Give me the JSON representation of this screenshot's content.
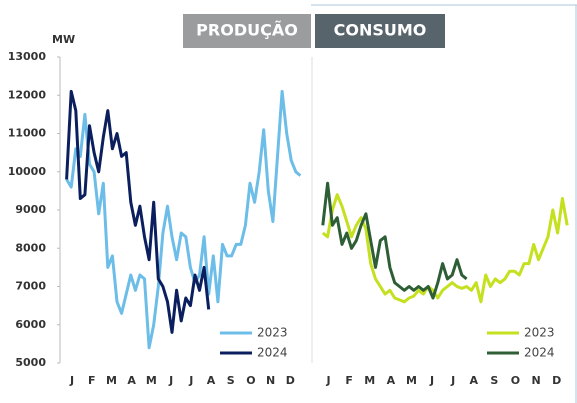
{
  "chart_data": {
    "type": "line",
    "y_label": "MW",
    "ylim": [
      5000,
      13000
    ],
    "yticks": [
      5000,
      6000,
      7000,
      8000,
      9000,
      10000,
      11000,
      12000,
      13000
    ],
    "xlim": [
      0,
      53
    ],
    "x": [
      1,
      2,
      3,
      4,
      5,
      6,
      7,
      8,
      9,
      10,
      11,
      12,
      13,
      14,
      15,
      16,
      17,
      18,
      19,
      20,
      21,
      22,
      23,
      24,
      25,
      26,
      27,
      28,
      29,
      30,
      31,
      32,
      33,
      34,
      35,
      36,
      37,
      38,
      39,
      40,
      41,
      42,
      43,
      44,
      45,
      46,
      47,
      48,
      49,
      50,
      51,
      52
    ],
    "xticks": [
      {
        "value": 2.2,
        "label": "J"
      },
      {
        "value": 6.5,
        "label": "F"
      },
      {
        "value": 10.8,
        "label": "M"
      },
      {
        "value": 15.2,
        "label": "A"
      },
      {
        "value": 19.5,
        "label": "M"
      },
      {
        "value": 23.8,
        "label": "J"
      },
      {
        "value": 28.2,
        "label": "J"
      },
      {
        "value": 32.5,
        "label": "A"
      },
      {
        "value": 36.8,
        "label": "S"
      },
      {
        "value": 41.2,
        "label": "O"
      },
      {
        "value": 45.5,
        "label": "N"
      },
      {
        "value": 49.8,
        "label": "D"
      }
    ],
    "legend": "lower right",
    "panels": [
      {
        "title": "PRODUÇÃO",
        "series": [
          {
            "name": "2023",
            "color": "#6cbde8",
            "values": [
              9800,
              9600,
              10600,
              10400,
              11500,
              10200,
              10000,
              8900,
              9700,
              7500,
              7800,
              6600,
              6300,
              6800,
              7300,
              6900,
              7300,
              7200,
              5400,
              6000,
              7000,
              8400,
              9100,
              8300,
              7700,
              8400,
              8300,
              7500,
              7100,
              7300,
              8300,
              6800,
              7800,
              6600,
              8100,
              7800,
              7800,
              8100,
              8100,
              8600,
              9700,
              9200,
              10000,
              11100,
              9500,
              8700,
              10400,
              12100,
              11000,
              10300,
              10000,
              9900
            ]
          },
          {
            "name": "2024",
            "color": "#0b1f5e",
            "values": [
              9800,
              12100,
              11600,
              9300,
              9400,
              11200,
              10500,
              10000,
              10900,
              11600,
              10600,
              11000,
              10400,
              10500,
              9200,
              8600,
              9100,
              8300,
              7700,
              9200,
              7200,
              7000,
              6600,
              5800,
              6900,
              6100,
              6700,
              6500,
              7300,
              6900,
              7500,
              6400,
              null,
              null,
              null,
              null,
              null,
              null,
              null,
              null,
              null,
              null,
              null,
              null,
              null,
              null,
              null,
              null,
              null,
              null,
              null,
              null
            ]
          }
        ]
      },
      {
        "title": "CONSUMO",
        "series": [
          {
            "name": "2023",
            "color": "#c5e01e",
            "values": [
              8400,
              8300,
              9000,
              9400,
              9100,
              8700,
              8300,
              8600,
              8800,
              8500,
              7600,
              7200,
              7000,
              6800,
              6900,
              6700,
              6650,
              6600,
              6700,
              6750,
              6900,
              6800,
              7000,
              6900,
              6700,
              6900,
              7000,
              7100,
              7000,
              6950,
              7000,
              6900,
              7100,
              6600,
              7300,
              7000,
              7200,
              7100,
              7200,
              7400,
              7400,
              7300,
              7600,
              7600,
              8100,
              7700,
              8000,
              8300,
              9000,
              8400,
              9300,
              8600
            ]
          },
          {
            "name": "2024",
            "color": "#2e5e35",
            "values": [
              8600,
              9700,
              8600,
              8800,
              8100,
              8400,
              8000,
              8200,
              8600,
              8900,
              8200,
              7500,
              8200,
              8300,
              7500,
              7100,
              7000,
              6900,
              7000,
              6900,
              7000,
              6900,
              7000,
              6700,
              7100,
              7600,
              7200,
              7300,
              7700,
              7300,
              7200,
              null,
              null,
              null,
              null,
              null,
              null,
              null,
              null,
              null,
              null,
              null,
              null,
              null,
              null,
              null,
              null,
              null,
              null,
              null,
              null,
              null
            ]
          }
        ]
      }
    ]
  }
}
